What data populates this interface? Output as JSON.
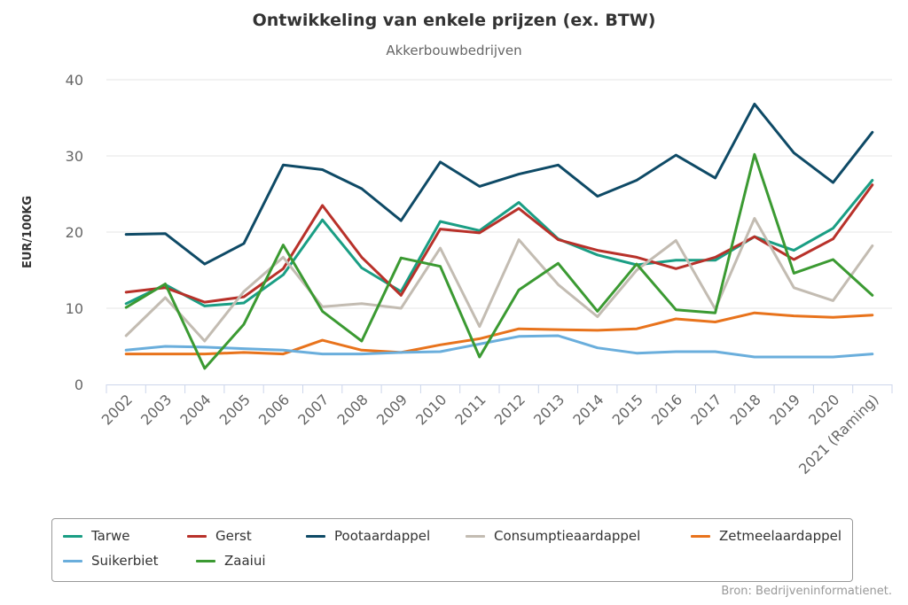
{
  "title": "Ontwikkeling van enkele prijzen (ex. BTW)",
  "subtitle": "Akkerbouwbedrijven",
  "credits": "Bron: Bedrijveninformatienet.",
  "chart_data": {
    "type": "line",
    "title": "Ontwikkeling van enkele prijzen (ex. BTW)",
    "subtitle": "Akkerbouwbedrijven",
    "ylabel": "EUR/100KG",
    "xlabel": "",
    "ylim": [
      0,
      40
    ],
    "yticks": [
      0,
      10,
      20,
      30,
      40
    ],
    "grid": true,
    "legend_position": "bottom",
    "categories": [
      "2002",
      "2003",
      "2004",
      "2005",
      "2006",
      "2007",
      "2008",
      "2009",
      "2010",
      "2011",
      "2012",
      "2013",
      "2014",
      "2015",
      "2016",
      "2017",
      "2018",
      "2019",
      "2020",
      "2021 (Raming)"
    ],
    "series": [
      {
        "name": "Tarwe",
        "color": "#1a9e84",
        "values": [
          10.6,
          13.1,
          10.3,
          10.7,
          14.4,
          21.6,
          15.3,
          12.2,
          21.4,
          20.2,
          23.9,
          19.1,
          17.0,
          15.7,
          16.3,
          16.3,
          19.4,
          17.6,
          20.5,
          26.8
        ]
      },
      {
        "name": "Gerst",
        "color": "#b8312a",
        "values": [
          12.1,
          12.7,
          10.8,
          11.5,
          15.2,
          23.5,
          16.7,
          11.7,
          20.4,
          19.9,
          23.1,
          19.0,
          17.6,
          16.7,
          15.2,
          16.7,
          19.4,
          16.4,
          19.1,
          26.2
        ]
      },
      {
        "name": "Pootaardappel",
        "color": "#0e4a66",
        "values": [
          19.7,
          19.8,
          15.8,
          18.5,
          28.8,
          28.2,
          25.7,
          21.5,
          29.2,
          26.0,
          27.6,
          28.8,
          24.7,
          26.8,
          30.1,
          27.1,
          36.8,
          30.4,
          26.5,
          33.1
        ]
      },
      {
        "name": "Consumptieaardappel",
        "color": "#c3bcb2",
        "values": [
          6.4,
          11.4,
          5.7,
          12.2,
          16.7,
          10.2,
          10.6,
          10.0,
          17.9,
          7.6,
          19.0,
          13.1,
          8.9,
          15.0,
          18.9,
          9.9,
          21.8,
          12.7,
          11.0,
          18.2
        ]
      },
      {
        "name": "Zetmeelaardappel",
        "color": "#e8731c",
        "values": [
          4.0,
          4.0,
          4.0,
          4.2,
          4.0,
          5.8,
          4.5,
          4.2,
          5.2,
          6.0,
          7.3,
          7.2,
          7.1,
          7.3,
          8.6,
          8.2,
          9.4,
          9.0,
          8.8,
          9.1
        ]
      },
      {
        "name": "Suikerbiet",
        "color": "#6aaedc",
        "values": [
          4.5,
          5.0,
          4.9,
          4.7,
          4.5,
          4.0,
          4.0,
          4.2,
          4.3,
          5.3,
          6.3,
          6.4,
          4.8,
          4.1,
          4.3,
          4.3,
          3.6,
          3.6,
          3.6,
          4.0
        ]
      },
      {
        "name": "Zaaiui",
        "color": "#3b9a32",
        "values": [
          10.1,
          13.2,
          2.1,
          7.9,
          18.3,
          9.6,
          5.7,
          16.6,
          15.5,
          3.6,
          12.4,
          15.9,
          9.6,
          15.8,
          9.8,
          9.4,
          30.2,
          14.6,
          16.4,
          11.7
        ]
      }
    ]
  }
}
